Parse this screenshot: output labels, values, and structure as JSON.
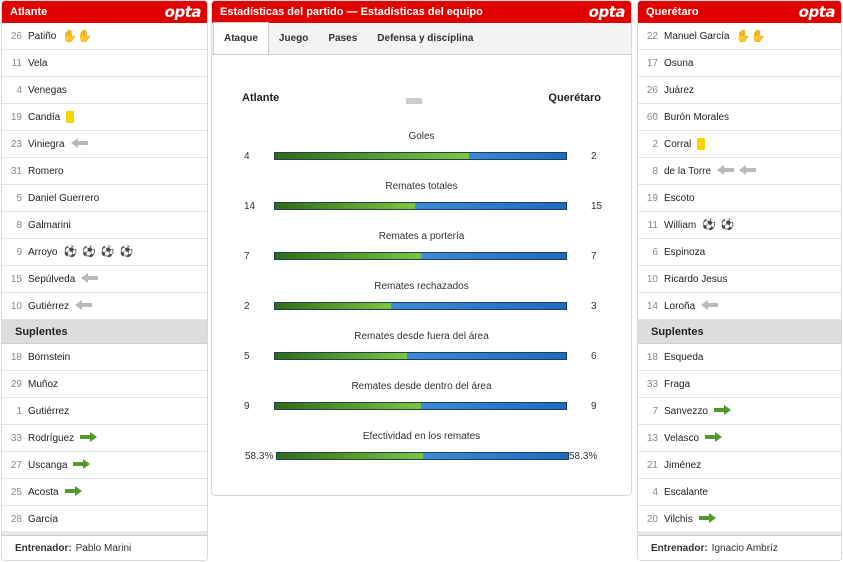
{
  "home": {
    "team": "Atlante",
    "brand": "opta",
    "starters": [
      {
        "num": "26",
        "name": "Patiño",
        "icons": [
          "gloves-icon"
        ]
      },
      {
        "num": "11",
        "name": "Vela",
        "icons": []
      },
      {
        "num": "4",
        "name": "Venegas",
        "icons": []
      },
      {
        "num": "19",
        "name": "Candía",
        "icons": [
          "yellow-card-icon"
        ]
      },
      {
        "num": "23",
        "name": "Viniegra",
        "icons": [
          "sub-out-icon"
        ]
      },
      {
        "num": "31",
        "name": "Romero",
        "icons": []
      },
      {
        "num": "5",
        "name": "Daniel Guerrero",
        "icons": []
      },
      {
        "num": "8",
        "name": "Galmarini",
        "icons": []
      },
      {
        "num": "9",
        "name": "Arroyo",
        "icons": [
          "goal-icon",
          "goal-icon",
          "goal-icon",
          "goal-icon"
        ]
      },
      {
        "num": "15",
        "name": "Sepúlveda",
        "icons": [
          "sub-out-icon"
        ]
      },
      {
        "num": "10",
        "name": "Gutiérrez",
        "icons": [
          "sub-out-icon"
        ]
      }
    ],
    "subs_label": "Suplentes",
    "subs": [
      {
        "num": "18",
        "name": "Bornstein",
        "icons": []
      },
      {
        "num": "29",
        "name": "Muñoz",
        "icons": []
      },
      {
        "num": "1",
        "name": "Gutiérrez",
        "icons": []
      },
      {
        "num": "33",
        "name": "Rodríguez",
        "icons": [
          "sub-in-icon"
        ]
      },
      {
        "num": "27",
        "name": "Uscanga",
        "icons": [
          "sub-in-icon"
        ]
      },
      {
        "num": "25",
        "name": "Acosta",
        "icons": [
          "sub-in-icon"
        ]
      },
      {
        "num": "28",
        "name": "García",
        "icons": []
      }
    ],
    "coach_label": "Entrenador:",
    "coach": "Pablo Marini"
  },
  "away": {
    "team": "Querétaro",
    "brand": "opta",
    "starters": [
      {
        "num": "22",
        "name": "Manuel García",
        "icons": [
          "gloves-icon"
        ]
      },
      {
        "num": "17",
        "name": "Osuna",
        "icons": []
      },
      {
        "num": "26",
        "name": "Juárez",
        "icons": []
      },
      {
        "num": "60",
        "name": "Burón Morales",
        "icons": []
      },
      {
        "num": "2",
        "name": "Corral",
        "icons": [
          "yellow-card-icon"
        ]
      },
      {
        "num": "8",
        "name": "de la Torre",
        "icons": [
          "sub-out-icon",
          "sub-out-icon"
        ]
      },
      {
        "num": "19",
        "name": "Escoto",
        "icons": []
      },
      {
        "num": "11",
        "name": "William",
        "icons": [
          "goal-icon",
          "goal-icon"
        ]
      },
      {
        "num": "6",
        "name": "Espinoza",
        "icons": []
      },
      {
        "num": "10",
        "name": "Ricardo Jesus",
        "icons": []
      },
      {
        "num": "14",
        "name": "Loroña",
        "icons": [
          "sub-out-icon"
        ]
      }
    ],
    "subs_label": "Suplentes",
    "subs": [
      {
        "num": "18",
        "name": "Esqueda",
        "icons": []
      },
      {
        "num": "33",
        "name": "Fraga",
        "icons": []
      },
      {
        "num": "7",
        "name": "Sanvezzo",
        "icons": [
          "sub-in-icon"
        ]
      },
      {
        "num": "13",
        "name": "Velasco",
        "icons": [
          "sub-in-icon"
        ]
      },
      {
        "num": "21",
        "name": "Jiménez",
        "icons": []
      },
      {
        "num": "4",
        "name": "Escalante",
        "icons": []
      },
      {
        "num": "20",
        "name": "Vilchis",
        "icons": [
          "sub-in-icon"
        ]
      }
    ],
    "coach_label": "Entrenador:",
    "coach": "Ignacio Ambríz"
  },
  "center": {
    "title": "Estadísticas del partido — Estadísticas del equipo",
    "brand": "opta",
    "tabs": [
      "Ataque",
      "Juego",
      "Pases",
      "Defensa y disciplina"
    ],
    "active_tab": 0,
    "home_team": "Atlante",
    "away_team": "Querétaro",
    "stats": [
      {
        "label": "Goles",
        "home": "4",
        "away": "2",
        "home_val": 4,
        "away_val": 2
      },
      {
        "label": "Remates totales",
        "home": "14",
        "away": "15",
        "home_val": 14,
        "away_val": 15
      },
      {
        "label": "Remates a portería",
        "home": "7",
        "away": "7",
        "home_val": 7,
        "away_val": 7
      },
      {
        "label": "Remates rechazados",
        "home": "2",
        "away": "3",
        "home_val": 2,
        "away_val": 3
      },
      {
        "label": "Remates desde fuera del área",
        "home": "5",
        "away": "6",
        "home_val": 5,
        "away_val": 6
      },
      {
        "label": "Remates desde dentro del área",
        "home": "9",
        "away": "9",
        "home_val": 9,
        "away_val": 9
      },
      {
        "label": "Efectividad en los remates",
        "home": "58.3%",
        "away": "58.3%",
        "home_val": 58.3,
        "away_val": 58.3
      }
    ]
  },
  "colors": {
    "header_red": "#e00000",
    "home_bar": "#5aa82a",
    "away_bar": "#2a7cc9",
    "yellow_card": "#f5d400"
  }
}
